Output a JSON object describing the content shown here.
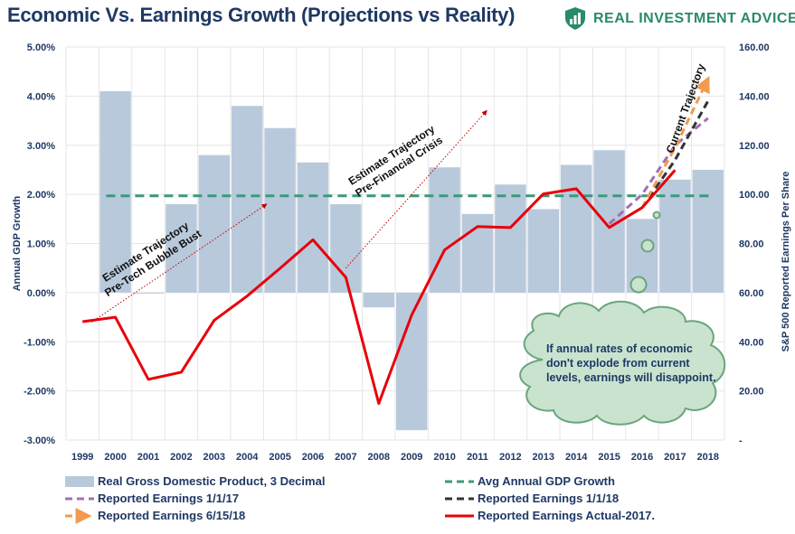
{
  "header": {
    "title": "Economic Vs. Earnings Growth (Projections vs Reality)",
    "brand": "REAL INVESTMENT ADVICE",
    "brand_color": "#2a8a6a"
  },
  "chart_data": {
    "type": "bar+line",
    "title": "Economic Vs. Earnings Growth (Projections vs Reality)",
    "ylabel": "Annual GDP Growth",
    "y2label": "S&P 500 Reported Earnings Per Share",
    "ylim": [
      -3,
      5
    ],
    "y2lim": [
      0,
      160
    ],
    "yticks": [
      "5.00%",
      "4.00%",
      "3.00%",
      "2.00%",
      "1.00%",
      "0.00%",
      "-1.00%",
      "-2.00%",
      "-3.00%"
    ],
    "y2ticks": [
      "160.00",
      "140.00",
      "120.00",
      "100.00",
      "80.00",
      "60.00",
      "40.00",
      "20.00",
      "-"
    ],
    "categories": [
      "1999",
      "2000",
      "2001",
      "2002",
      "2003",
      "2004",
      "2005",
      "2006",
      "2007",
      "2008",
      "2009",
      "2010",
      "2011",
      "2012",
      "2013",
      "2014",
      "2015",
      "2016",
      "2017",
      "2018"
    ],
    "series": [
      {
        "name": "Real Gross Domestic Product, 3 Decimal",
        "kind": "bar",
        "color": "#b8c9dc",
        "values": [
          null,
          4.1,
          0.0,
          1.8,
          2.8,
          3.8,
          3.35,
          2.65,
          1.8,
          -0.3,
          -2.8,
          2.55,
          1.6,
          2.2,
          1.7,
          2.6,
          2.9,
          1.5,
          2.3,
          2.5
        ]
      },
      {
        "name": "Avg Annual GDP Growth",
        "kind": "dashed",
        "color": "#3a9a7a",
        "value": 1.97
      },
      {
        "name": "Reported Earnings Actual-2017.",
        "kind": "line",
        "color": "#e8000b",
        "x": [
          1999,
          2000,
          2001,
          2002,
          2003,
          2004,
          2005,
          2006,
          2007,
          2008,
          2009,
          2010,
          2011,
          2012,
          2013,
          2014,
          2015,
          2016,
          2017
        ],
        "values": [
          48.2,
          50.0,
          24.7,
          27.6,
          48.7,
          58.6,
          69.9,
          81.5,
          66.2,
          14.9,
          50.9,
          77.4,
          86.9,
          86.5,
          100.2,
          102.3,
          86.5,
          94.6,
          109.9
        ]
      },
      {
        "name": "Reported Earnings 1/1/17",
        "kind": "dashed",
        "color": "#a070b0",
        "x": [
          2015,
          2016,
          2017,
          2018
        ],
        "values": [
          88.0,
          100.0,
          120.0,
          131.0
        ]
      },
      {
        "name": "Reported Earnings 1/1/18",
        "kind": "dashed",
        "color": "#333333",
        "x": [
          2016,
          2017,
          2018
        ],
        "values": [
          94.6,
          114.0,
          138.0
        ]
      },
      {
        "name": "Reported Earnings 6/15/18",
        "kind": "dashed-arrow",
        "color": "#f39a4e",
        "x": [
          2016,
          2017,
          2018
        ],
        "values": [
          94.6,
          119.0,
          147.0
        ]
      }
    ],
    "annotations": [
      {
        "text_lines": [
          "Estimate Trajectory",
          "Pre-Tech Bubble Bust"
        ]
      },
      {
        "text_lines": [
          "Estimate Trajectory",
          "Pre-Financial Crisis"
        ]
      },
      {
        "text_lines": [
          "Current Trajectory"
        ]
      }
    ],
    "callout": "If annual rates of economic don't explode from current levels, earnings will disappoint.",
    "legend": [
      "Real Gross Domestic Product, 3 Decimal",
      "Avg Annual GDP Growth",
      "Reported Earnings 1/1/17",
      "Reported Earnings 1/1/18",
      "Reported Earnings 6/15/18",
      "Reported Earnings Actual-2017."
    ]
  }
}
